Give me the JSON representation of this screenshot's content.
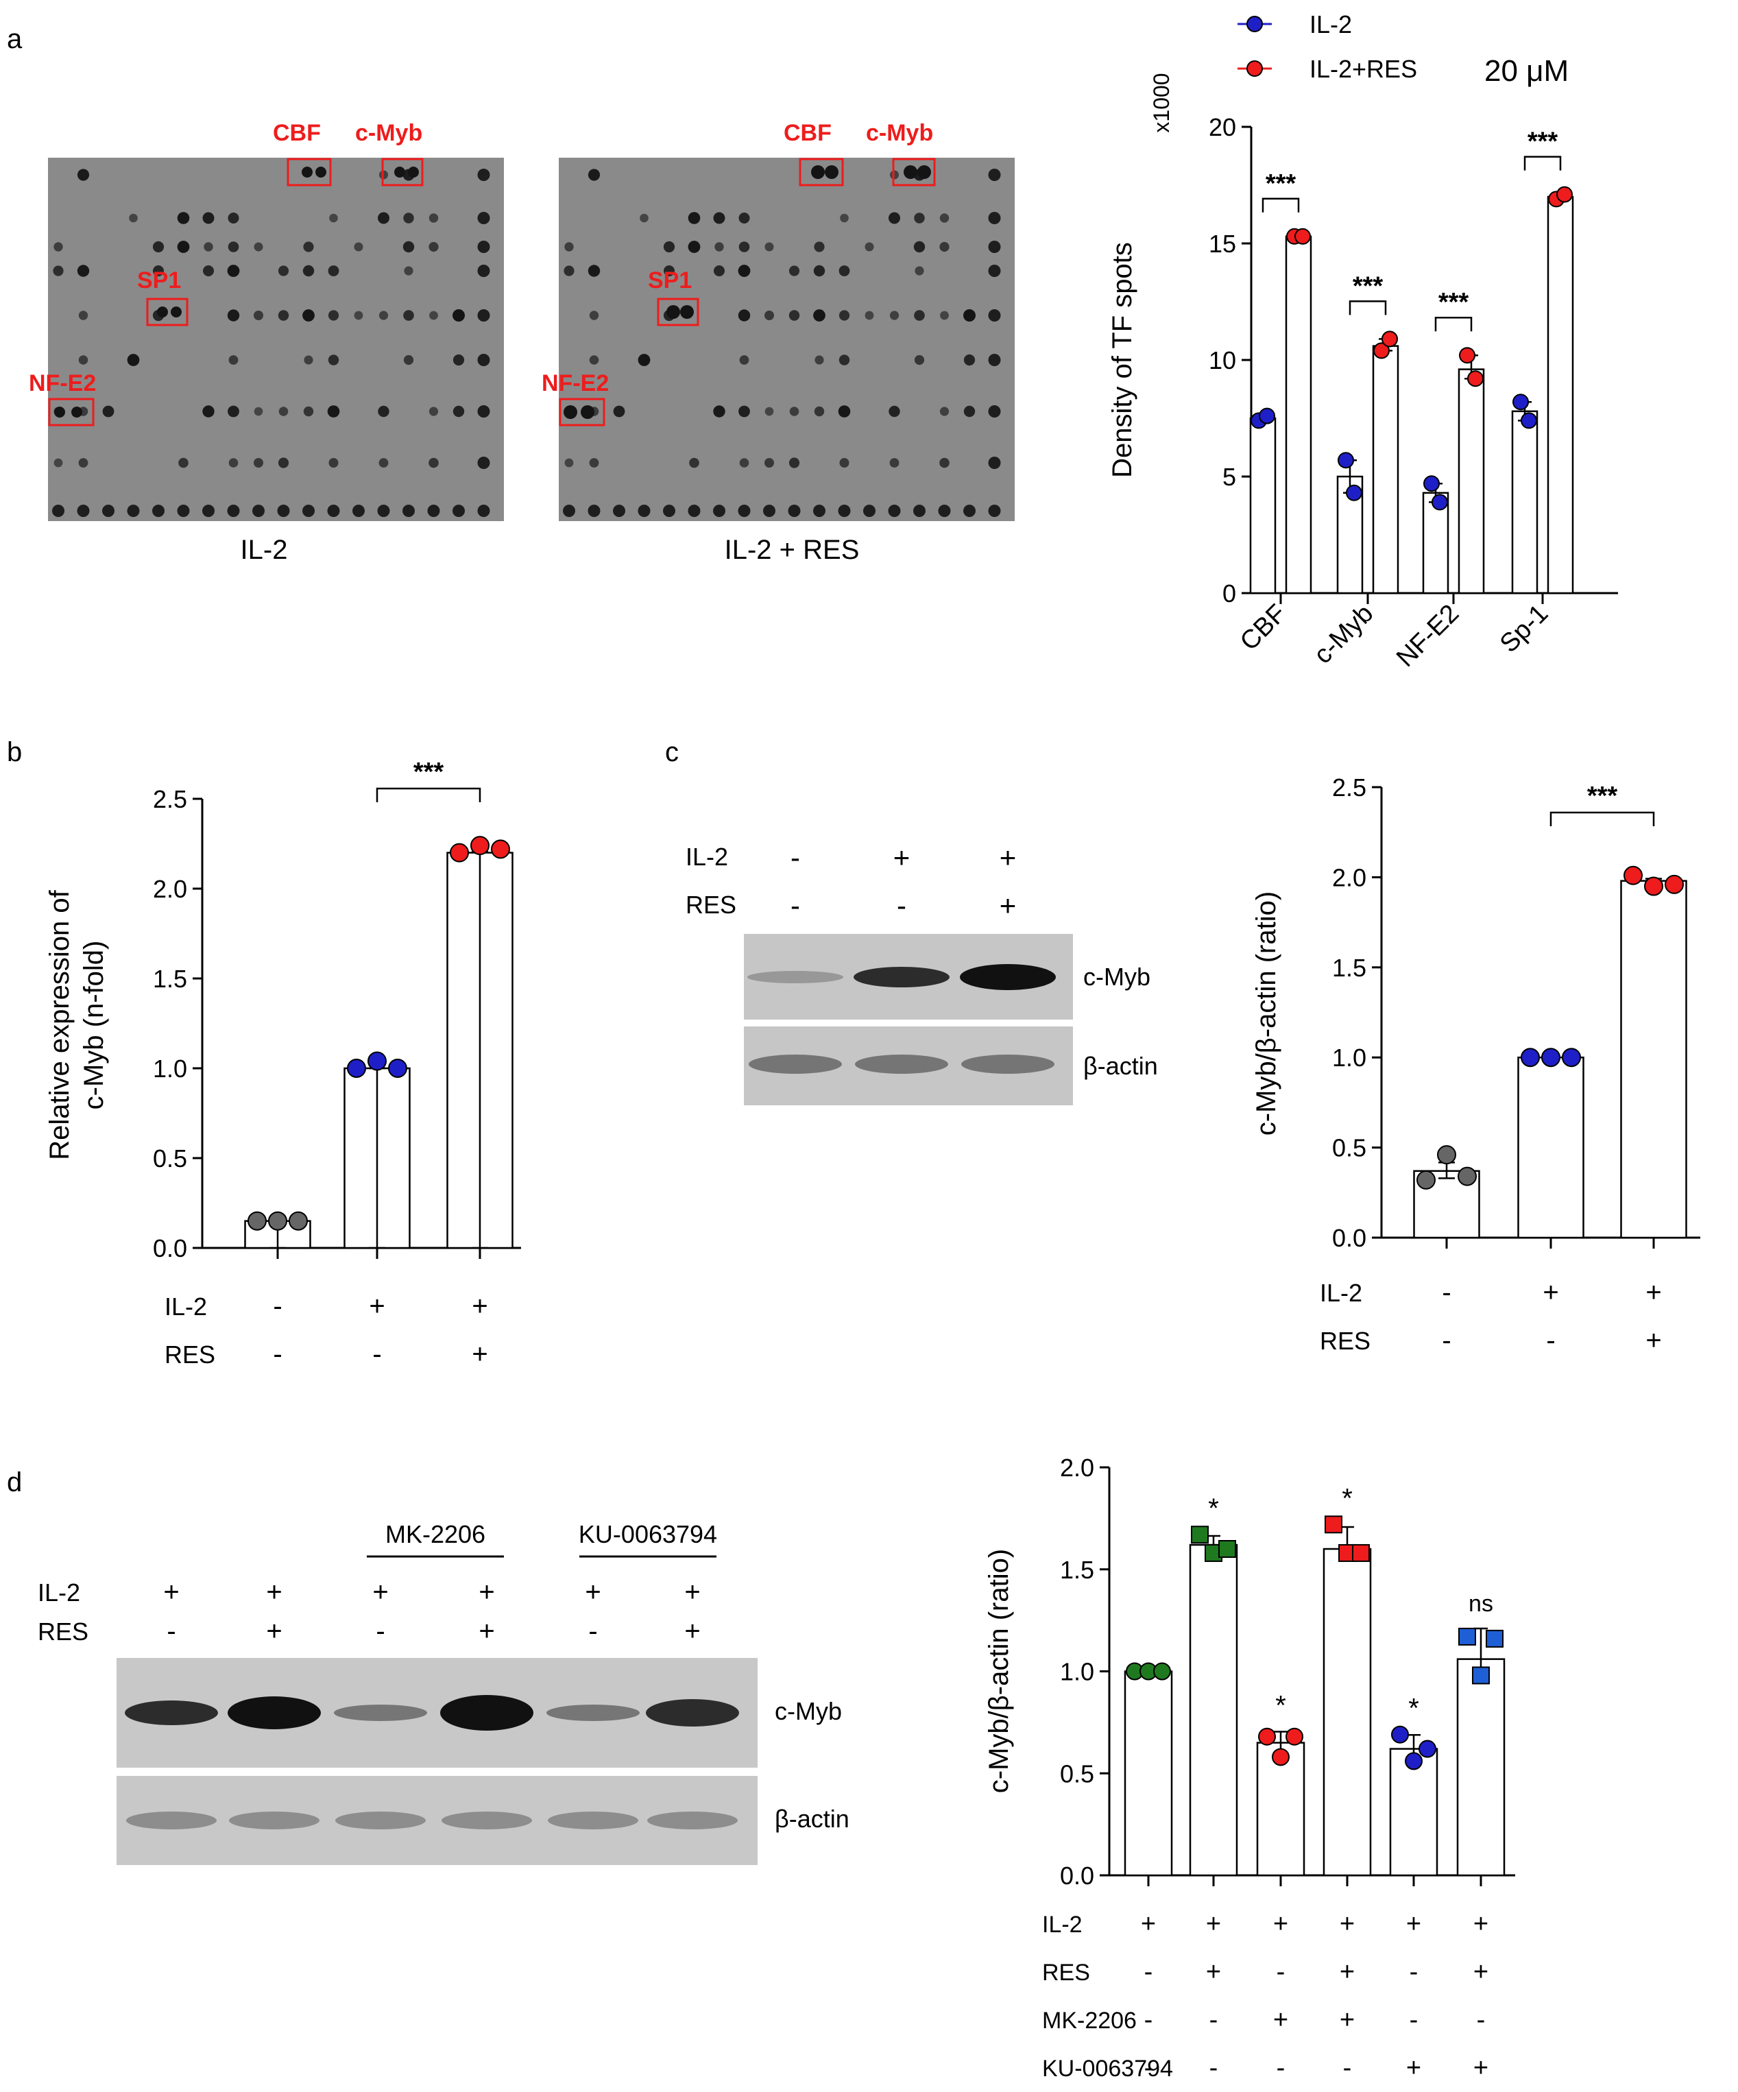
{
  "panel_labels": {
    "a": "a",
    "b": "b",
    "c": "c",
    "d": "d"
  },
  "colors": {
    "il2": "#1f1fc8",
    "il2_res": "#ee1c1c",
    "grey": "#666666",
    "green": "#1f7a1f",
    "blue_sq": "#1f5fd6",
    "red_box": "#ee1c1c"
  },
  "panel_a": {
    "array_left_caption": "IL-2",
    "array_right_caption": "IL-2 + RES",
    "array_tags": {
      "cbf": "CBF",
      "cmyb": "c-Myb",
      "sp1": "SP1",
      "nfe2": "NF-E2"
    }
  },
  "panel_c_blot": {
    "row_labels": [
      "IL-2",
      "RES"
    ],
    "signs": [
      [
        "-",
        "+",
        "+"
      ],
      [
        "-",
        "-",
        "+"
      ]
    ],
    "band_labels": [
      "c-Myb",
      "β-actin"
    ]
  },
  "panel_d_blot": {
    "group_labels": [
      "MK-2206",
      "KU-0063794"
    ],
    "row_labels": [
      "IL-2",
      "RES"
    ],
    "signs": [
      [
        "+",
        "+",
        "+",
        "+",
        "+",
        "+"
      ],
      [
        "-",
        "+",
        "-",
        "+",
        "-",
        "+"
      ]
    ],
    "band_labels": [
      "c-Myb",
      "β-actin"
    ]
  },
  "chart_data": [
    {
      "id": "a-chart",
      "type": "bar",
      "title": "",
      "ylabel": "Density of TF spots",
      "yscale_label": "x1000",
      "ylim": [
        0,
        20
      ],
      "yticks": [
        "0",
        "5",
        "10",
        "15",
        "20"
      ],
      "categories": [
        "CBF",
        "c-Myb",
        "NF-E2",
        "Sp-1"
      ],
      "legend": [
        "IL-2",
        "IL-2+RES"
      ],
      "legend_note": "20 μM",
      "series": [
        {
          "name": "IL-2",
          "values": [
            7.5,
            5.0,
            4.3,
            7.8
          ],
          "points": [
            [
              7.4,
              7.6
            ],
            [
              5.7,
              4.3
            ],
            [
              4.7,
              3.9
            ],
            [
              8.2,
              7.4
            ]
          ]
        },
        {
          "name": "IL-2+RES",
          "values": [
            15.3,
            10.6,
            9.6,
            17.0
          ],
          "points": [
            [
              15.3,
              15.3
            ],
            [
              10.4,
              10.9
            ],
            [
              10.2,
              9.2
            ],
            [
              16.9,
              17.1
            ]
          ]
        }
      ],
      "significance": [
        "***",
        "***",
        "***",
        "***"
      ]
    },
    {
      "id": "b-chart",
      "type": "bar",
      "ylabel": "Relative expression of c-Myb (n-fold)",
      "ylabel_lines": [
        "Relative expression of",
        "c-Myb (n-fold)"
      ],
      "ylim": [
        0,
        2.5
      ],
      "yticks": [
        "0.0",
        "0.5",
        "1.0",
        "1.5",
        "2.0",
        "2.5"
      ],
      "values": [
        0.15,
        1.0,
        2.2
      ],
      "points": [
        [
          0.15,
          0.15,
          0.15
        ],
        [
          1.0,
          1.04,
          1.0
        ],
        [
          2.2,
          2.24,
          2.22
        ]
      ],
      "condition_labels": [
        "IL-2",
        "RES"
      ],
      "conditions": [
        [
          "-",
          "+",
          "+"
        ],
        [
          "-",
          "-",
          "+"
        ]
      ],
      "significance": [
        {
          "between": [
            1,
            2
          ],
          "label": "***"
        }
      ]
    },
    {
      "id": "c-chart",
      "type": "bar",
      "ylabel": "c-Myb/β-actin (ratio)",
      "ylim": [
        0,
        2.5
      ],
      "yticks": [
        "0.0",
        "0.5",
        "1.0",
        "1.5",
        "2.0",
        "2.5"
      ],
      "values": [
        0.37,
        1.0,
        1.98
      ],
      "points": [
        [
          0.32,
          0.46,
          0.34
        ],
        [
          1.0,
          1.0,
          1.0
        ],
        [
          2.01,
          1.95,
          1.96
        ]
      ],
      "condition_labels": [
        "IL-2",
        "RES"
      ],
      "conditions": [
        [
          "-",
          "+",
          "+"
        ],
        [
          "-",
          "-",
          "+"
        ]
      ],
      "significance": [
        {
          "between": [
            1,
            2
          ],
          "label": "***"
        }
      ]
    },
    {
      "id": "d-chart",
      "type": "bar",
      "ylabel": "c-Myb/β-actin (ratio)",
      "ylim": [
        0,
        2.0
      ],
      "yticks": [
        "0.0",
        "0.5",
        "1.0",
        "1.5",
        "2.0"
      ],
      "values": [
        1.0,
        1.62,
        0.65,
        1.6,
        0.62,
        1.06
      ],
      "points": [
        [
          1.0,
          1.0,
          1.0
        ],
        [
          1.67,
          1.58,
          1.6
        ],
        [
          0.68,
          0.58,
          0.68
        ],
        [
          1.72,
          1.58,
          1.58
        ],
        [
          0.69,
          0.56,
          0.62
        ],
        [
          1.17,
          0.98,
          1.16
        ]
      ],
      "marker_shapes": [
        "circle",
        "square",
        "circle",
        "square",
        "circle",
        "square"
      ],
      "marker_colors": [
        "green",
        "green",
        "red",
        "red",
        "blue",
        "blue"
      ],
      "annotations": [
        "",
        "*",
        "*",
        "*",
        "*",
        "ns"
      ],
      "condition_labels": [
        "IL-2",
        "RES",
        "MK-2206",
        "KU-0063794"
      ],
      "conditions": [
        [
          "+",
          "+",
          "+",
          "+",
          "+",
          "+"
        ],
        [
          "-",
          "+",
          "-",
          "+",
          "-",
          "+"
        ],
        [
          "-",
          "-",
          "+",
          "+",
          "-",
          "-"
        ],
        [
          "-",
          "-",
          "-",
          "-",
          "+",
          "+"
        ]
      ]
    }
  ]
}
